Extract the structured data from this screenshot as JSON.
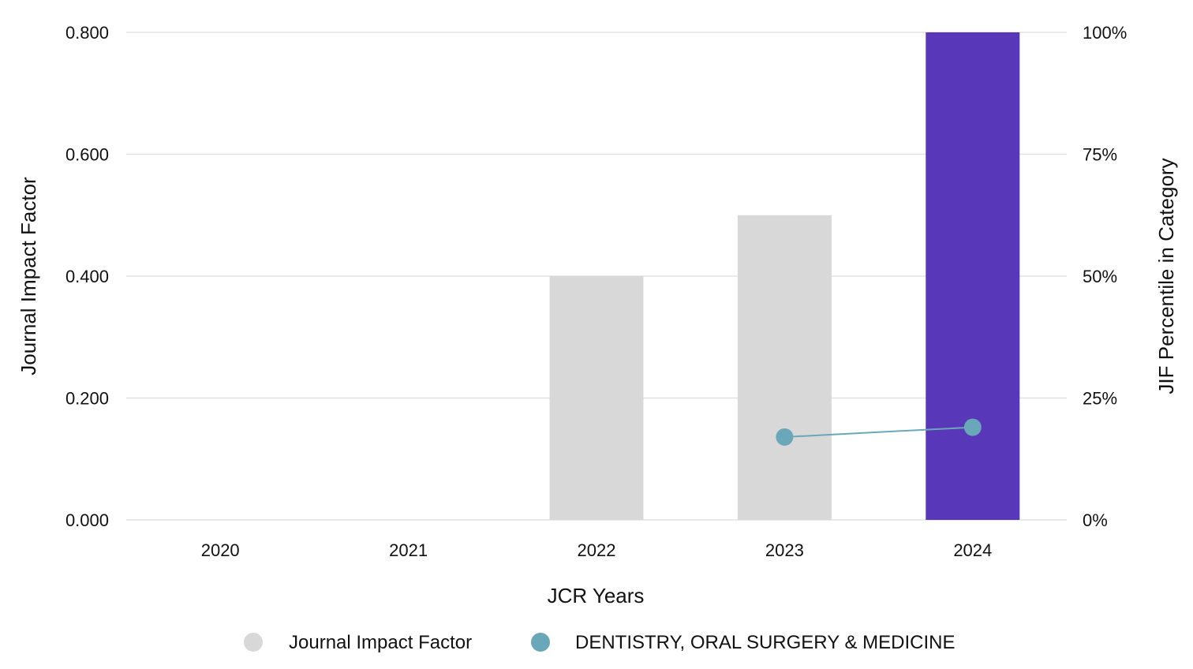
{
  "chart_data": {
    "type": "bar",
    "categories": [
      "2020",
      "2021",
      "2022",
      "2023",
      "2024"
    ],
    "series": [
      {
        "name": "Journal Impact Factor",
        "type": "bar",
        "axis": "left",
        "values": [
          null,
          null,
          0.4,
          0.5,
          0.8
        ],
        "colors": [
          "#d8d8d8",
          "#d8d8d8",
          "#d8d8d8",
          "#d8d8d8",
          "#5837b9"
        ],
        "legend_color": "#d8d8d8"
      },
      {
        "name": "DENTISTRY, ORAL SURGERY & MEDICINE",
        "type": "line",
        "axis": "right",
        "values": [
          null,
          null,
          null,
          17,
          19
        ],
        "color": "#6aa7b8"
      }
    ],
    "xlabel": "JCR Years",
    "ylabel": "Journal Impact Factor",
    "y2label": "JIF Percentile in Category",
    "ylim": [
      0,
      0.8
    ],
    "y2lim": [
      0,
      100
    ],
    "yticks": [
      "0.000",
      "0.200",
      "0.400",
      "0.600",
      "0.800"
    ],
    "y2ticks": [
      "0%",
      "25%",
      "50%",
      "75%",
      "100%"
    ],
    "grid": true,
    "legend_position": "bottom"
  }
}
